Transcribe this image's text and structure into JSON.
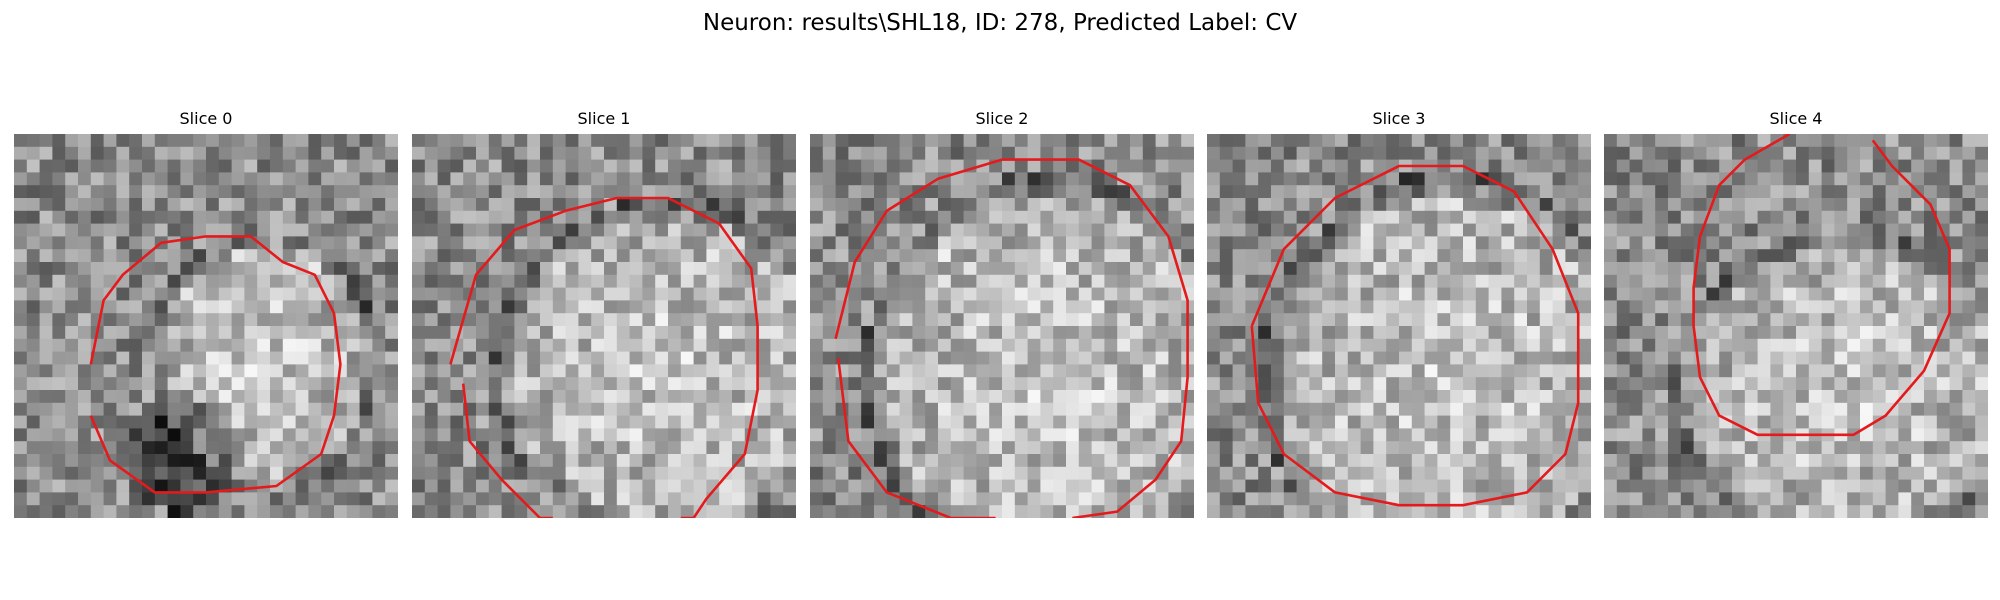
{
  "figure": {
    "title": "Neuron: results\\SHL18, ID: 278, Predicted Label: CV",
    "contour_color": "#e41a1c",
    "image_style": "grayscale microscopy patch",
    "panels": [
      {
        "title": "Slice 0"
      },
      {
        "title": "Slice 1"
      },
      {
        "title": "Slice 2"
      },
      {
        "title": "Slice 3"
      },
      {
        "title": "Slice 4"
      }
    ]
  }
}
